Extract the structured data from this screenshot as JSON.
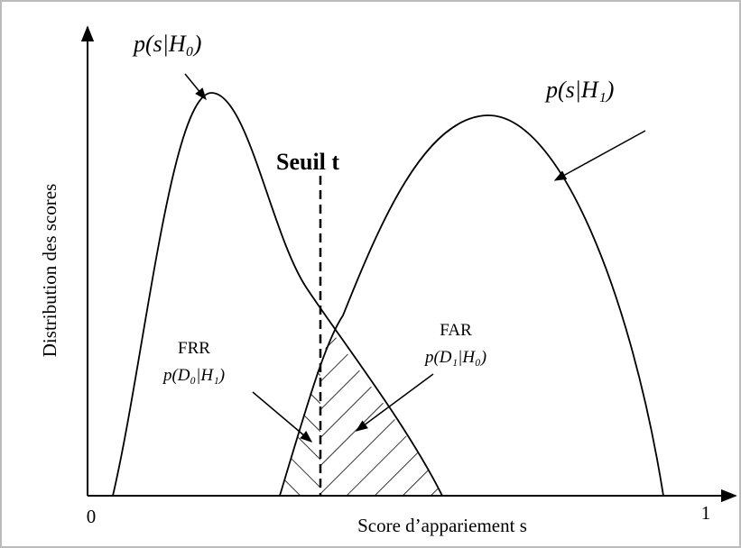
{
  "labels": {
    "h0": "p(s|H₀)",
    "h1": "p(s|H₁)",
    "threshold": "Seuil t",
    "frr": "FRR",
    "frr_formula": "p(D₀|H₁)",
    "far": "FAR",
    "far_formula": "p(D₁|H₀)"
  },
  "axes": {
    "y_label": "Distribution des scores",
    "x_label": "Score d’appariement s",
    "x_min": "0",
    "x_max": "1"
  }
}
